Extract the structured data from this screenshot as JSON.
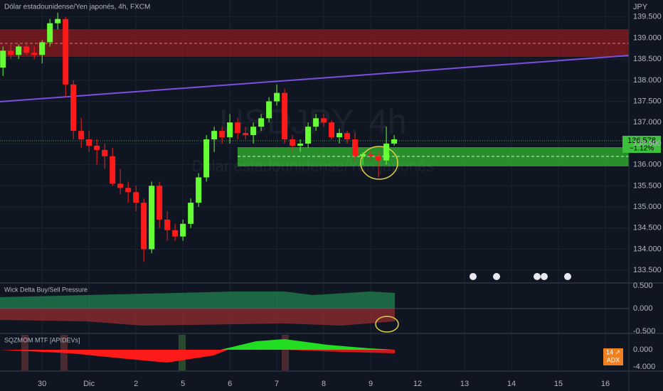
{
  "chart_data": {
    "type": "candlestick",
    "title": "Dólar estadounidense/Yen japonés, 4h, FXCM",
    "watermark": "USDJPY, 4h",
    "watermark_subtitle": "Dólar estadounidense/Yen japonés",
    "currency": "JPY",
    "last_price": "136.578",
    "change": "−1.12%",
    "up_color": "#66ff33",
    "down_color": "#ff1a1a",
    "open": [
      138.3,
      138.7,
      138.6,
      138.8,
      138.65,
      138.6,
      138.9,
      139.35,
      139.45,
      137.9,
      136.8,
      136.6,
      136.45,
      136.35,
      136.2,
      135.55,
      135.45,
      135.35,
      135.1,
      134.0,
      135.5,
      134.7,
      134.45,
      134.3,
      134.6,
      135.1,
      135.7,
      136.6,
      136.8,
      136.65,
      137.0,
      136.75,
      136.7,
      136.9,
      137.1,
      137.5,
      137.7,
      136.6,
      136.45,
      136.5,
      136.9,
      137.1,
      137.0,
      136.65,
      136.75,
      136.6,
      136.2,
      136.25,
      136.2,
      136.1,
      136.5
    ],
    "high": [
      138.8,
      138.85,
      138.85,
      138.9,
      138.8,
      138.95,
      139.45,
      139.6,
      139.5,
      138.0,
      137.1,
      136.8,
      136.6,
      136.5,
      136.4,
      135.9,
      135.6,
      135.5,
      135.2,
      135.6,
      135.6,
      134.9,
      134.6,
      134.7,
      135.2,
      135.8,
      136.7,
      136.9,
      136.9,
      137.2,
      137.1,
      136.9,
      137.0,
      137.2,
      137.6,
      137.9,
      137.8,
      136.7,
      136.6,
      137.0,
      137.2,
      137.2,
      137.05,
      136.85,
      136.8,
      136.75,
      136.3,
      136.35,
      136.3,
      136.9,
      136.7
    ],
    "low": [
      138.1,
      138.5,
      138.5,
      138.6,
      138.5,
      138.4,
      138.8,
      139.2,
      137.6,
      136.6,
      136.4,
      136.3,
      136.0,
      135.9,
      135.5,
      135.3,
      135.1,
      134.9,
      133.7,
      133.9,
      134.5,
      134.2,
      134.2,
      134.2,
      134.5,
      135.0,
      135.6,
      136.3,
      136.5,
      136.5,
      136.6,
      136.6,
      136.5,
      136.8,
      137.0,
      137.4,
      136.5,
      136.3,
      136.3,
      136.4,
      136.8,
      136.9,
      136.6,
      136.5,
      136.5,
      136.1,
      136.0,
      136.1,
      135.7,
      136.0,
      136.45
    ],
    "close": [
      138.7,
      138.6,
      138.8,
      138.65,
      138.6,
      138.9,
      139.35,
      139.45,
      137.9,
      136.8,
      136.6,
      136.45,
      136.35,
      136.2,
      135.55,
      135.45,
      135.35,
      135.1,
      134.0,
      135.5,
      134.7,
      134.45,
      134.3,
      134.6,
      135.1,
      135.7,
      136.6,
      136.8,
      136.65,
      137.0,
      136.75,
      136.7,
      136.9,
      137.1,
      137.5,
      137.7,
      136.6,
      136.45,
      136.5,
      136.9,
      137.1,
      137.0,
      136.65,
      136.75,
      136.6,
      136.2,
      136.25,
      136.2,
      136.1,
      136.5,
      136.6
    ],
    "xlim": [
      -0.2,
      80
    ],
    "xticks": [
      {
        "value": 5,
        "label": "30"
      },
      {
        "value": 11,
        "label": "Dic"
      },
      {
        "value": 17,
        "label": "2"
      },
      {
        "value": 23,
        "label": "5"
      },
      {
        "value": 29,
        "label": "6"
      },
      {
        "value": 35,
        "label": "7"
      },
      {
        "value": 41,
        "label": "8"
      },
      {
        "value": 47,
        "label": "9"
      },
      {
        "value": 53,
        "label": "12"
      },
      {
        "value": 59,
        "label": "13"
      },
      {
        "value": 65,
        "label": "14"
      },
      {
        "value": 71,
        "label": "15"
      },
      {
        "value": 77,
        "label": "16"
      }
    ],
    "ylim": [
      133.2,
      139.9
    ],
    "yticks": [
      {
        "value": 133.5,
        "label": "133.500"
      },
      {
        "value": 134,
        "label": "134.000"
      },
      {
        "value": 134.5,
        "label": "134.500"
      },
      {
        "value": 135,
        "label": "135.000"
      },
      {
        "value": 135.5,
        "label": "135.500"
      },
      {
        "value": 136,
        "label": "136.000"
      },
      {
        "value": 136.5,
        "label": "136.500"
      },
      {
        "value": 137,
        "label": "137.000"
      },
      {
        "value": 137.5,
        "label": "137.500"
      },
      {
        "value": 138,
        "label": "138.000"
      },
      {
        "value": 138.5,
        "label": "138.500"
      },
      {
        "value": 139,
        "label": "139.000"
      },
      {
        "value": 139.5,
        "label": "139.500"
      }
    ],
    "grid": true,
    "panes": [
      {
        "title": "Wick Delta Buy/Sell Pressure",
        "yticks": [
          "0.500",
          "0.000",
          "-0.500"
        ]
      },
      {
        "title": "SQZMOM MTF [APIDEVs]",
        "yticks": [
          "0.000",
          "-4.000"
        ],
        "badge_value": "14 ↗",
        "badge_label": "ADX"
      }
    ]
  }
}
